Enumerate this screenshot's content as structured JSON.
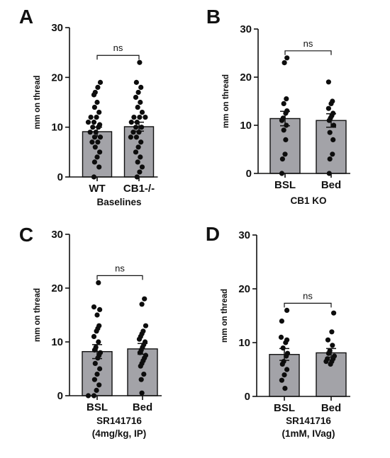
{
  "chart_data": [
    {
      "type": "bar",
      "panel": "A",
      "ylabel": "mm on thread",
      "xlabel": [
        "Baselines"
      ],
      "ylim": [
        0,
        30
      ],
      "yticks": [
        0,
        10,
        20,
        30
      ],
      "categories": [
        "WT",
        "CB1-/-"
      ],
      "values": [
        9.1,
        10.1
      ],
      "sem": [
        0.9,
        0.9
      ],
      "points": [
        [
          19,
          18,
          17,
          16.5,
          15,
          14,
          13,
          12,
          12,
          11,
          11,
          10.5,
          10,
          10,
          9,
          9,
          8,
          8,
          7,
          7,
          6,
          5,
          4,
          3,
          2,
          0
        ],
        [
          23,
          19,
          18,
          17,
          16,
          15,
          14,
          13,
          12,
          12,
          12,
          11,
          11,
          10,
          10,
          9,
          9,
          8,
          8,
          7,
          6,
          5,
          4,
          3,
          2,
          1,
          0
        ]
      ],
      "comparison": {
        "from": 0,
        "to": 1,
        "label": "ns"
      },
      "bar_color": "#a3a3a8"
    },
    {
      "type": "bar",
      "panel": "B",
      "ylabel": "mm on thread",
      "xlabel": [
        "CB1 KO"
      ],
      "ylim": [
        0,
        30
      ],
      "yticks": [
        0,
        10,
        20,
        30
      ],
      "categories": [
        "BSL",
        "Bed"
      ],
      "values": [
        11.4,
        11.0
      ],
      "sem": [
        1.5,
        1.4
      ],
      "points": [
        [
          24,
          23,
          15.5,
          14.5,
          13,
          12.5,
          11.5,
          11,
          10,
          9,
          7,
          4,
          3,
          0
        ],
        [
          19,
          15,
          14.5,
          13.5,
          12.5,
          12,
          11.5,
          11,
          10,
          8.5,
          7,
          4,
          3,
          0
        ]
      ],
      "comparison": {
        "from": 0,
        "to": 1,
        "label": "ns"
      },
      "bar_color": "#a3a3a8"
    },
    {
      "type": "bar",
      "panel": "C",
      "ylabel": "mm on thread",
      "xlabel": [
        "SR141716",
        "(4mg/kg, IP)"
      ],
      "ylim": [
        0,
        30
      ],
      "yticks": [
        0,
        10,
        20,
        30
      ],
      "categories": [
        "BSL",
        "Bed"
      ],
      "values": [
        8.2,
        8.7
      ],
      "sem": [
        1.3,
        1.0
      ],
      "points": [
        [
          21,
          16.5,
          16,
          15,
          13,
          12.5,
          12,
          11,
          10,
          9,
          8.5,
          8,
          7.5,
          7,
          6,
          5,
          4,
          3,
          2,
          1,
          0,
          0
        ],
        [
          18,
          17,
          13,
          12,
          11.5,
          11,
          10.5,
          10,
          9.5,
          9,
          8.5,
          8,
          7.5,
          7,
          6.5,
          6,
          5.5,
          4,
          3,
          0.5
        ]
      ],
      "comparison": {
        "from": 0,
        "to": 1,
        "label": "ns"
      },
      "bar_color": "#a3a3a8"
    },
    {
      "type": "bar",
      "panel": "D",
      "ylabel": "mm on thread",
      "xlabel": [
        "SR141716",
        "(1mM, IVag)"
      ],
      "ylim": [
        0,
        30
      ],
      "yticks": [
        0,
        10,
        20,
        30
      ],
      "categories": [
        "BSL",
        "Bed"
      ],
      "values": [
        7.8,
        8.1
      ],
      "sem": [
        1.1,
        0.8
      ],
      "points": [
        [
          16,
          14,
          11,
          10.5,
          10,
          9,
          8,
          7.5,
          6.5,
          6,
          5,
          4,
          3,
          1.5
        ],
        [
          15.5,
          12,
          10.5,
          9.5,
          8.5,
          8,
          7.5,
          7,
          7,
          6.5,
          6.5,
          6
        ]
      ],
      "comparison": {
        "from": 0,
        "to": 1,
        "label": "ns"
      },
      "bar_color": "#a3a3a8"
    }
  ]
}
